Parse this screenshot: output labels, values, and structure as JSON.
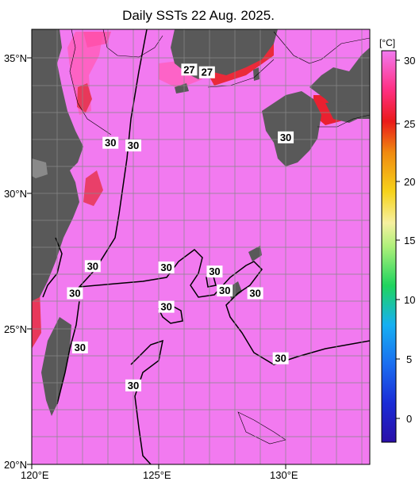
{
  "title": "Daily SSTs 22 Aug. 2025.",
  "axes": {
    "lat_labels": [
      "35°N",
      "30°N",
      "25°N",
      "20°N"
    ],
    "lon_labels": [
      "120°E",
      "125°E",
      "130°E"
    ]
  },
  "colorbar": {
    "unit": "[°C]",
    "ticks": [
      "30",
      "25",
      "20",
      "15",
      "10",
      "5",
      "0"
    ],
    "range": [
      -2,
      32
    ]
  },
  "contour_labels": [
    {
      "text": "27",
      "lon": 126.2,
      "lat": 34.55
    },
    {
      "text": "27",
      "lon": 126.9,
      "lat": 34.45
    },
    {
      "text": "30",
      "lon": 123.1,
      "lat": 31.85
    },
    {
      "text": "30",
      "lon": 124.0,
      "lat": 31.75
    },
    {
      "text": "30",
      "lon": 130.0,
      "lat": 32.05
    },
    {
      "text": "30",
      "lon": 122.4,
      "lat": 27.3
    },
    {
      "text": "30",
      "lon": 125.3,
      "lat": 27.25
    },
    {
      "text": "30",
      "lon": 121.7,
      "lat": 26.3
    },
    {
      "text": "30",
      "lon": 127.2,
      "lat": 27.1
    },
    {
      "text": "30",
      "lon": 127.6,
      "lat": 26.4
    },
    {
      "text": "30",
      "lon": 128.8,
      "lat": 26.3
    },
    {
      "text": "30",
      "lon": 125.3,
      "lat": 25.8
    },
    {
      "text": "30",
      "lon": 121.9,
      "lat": 24.3
    },
    {
      "text": "30",
      "lon": 124.0,
      "lat": 22.9
    },
    {
      "text": "30",
      "lon": 129.8,
      "lat": 23.9
    }
  ],
  "colors": {
    "sea": "#f27af0",
    "land": "#595959",
    "warm_core": "#ff6fcf",
    "cool_patch": "#e8385a"
  }
}
